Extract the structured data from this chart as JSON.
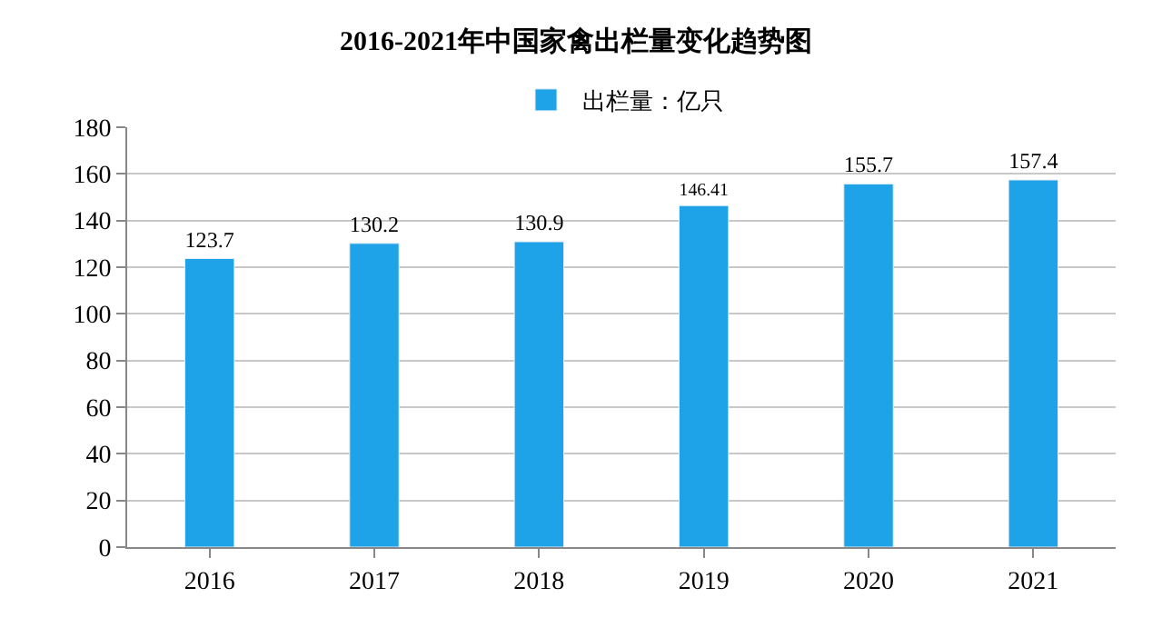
{
  "chart_data": {
    "type": "bar",
    "title": "2016-2021年中国家禽出栏量变化趋势图",
    "categories": [
      "2016",
      "2017",
      "2018",
      "2019",
      "2020",
      "2021"
    ],
    "series": [
      {
        "name": "出栏量：亿只",
        "color": "#1fa3e8",
        "values": [
          123.7,
          130.2,
          130.9,
          146.41,
          155.7,
          157.4
        ]
      }
    ],
    "value_labels": [
      "123.7",
      "130.2",
      "130.9",
      "146.41",
      "155.7",
      "157.4"
    ],
    "ylim": [
      0,
      180
    ],
    "yticks": [
      0,
      20,
      40,
      60,
      80,
      100,
      120,
      140,
      160,
      180
    ],
    "grid": "y",
    "legend": "top"
  }
}
